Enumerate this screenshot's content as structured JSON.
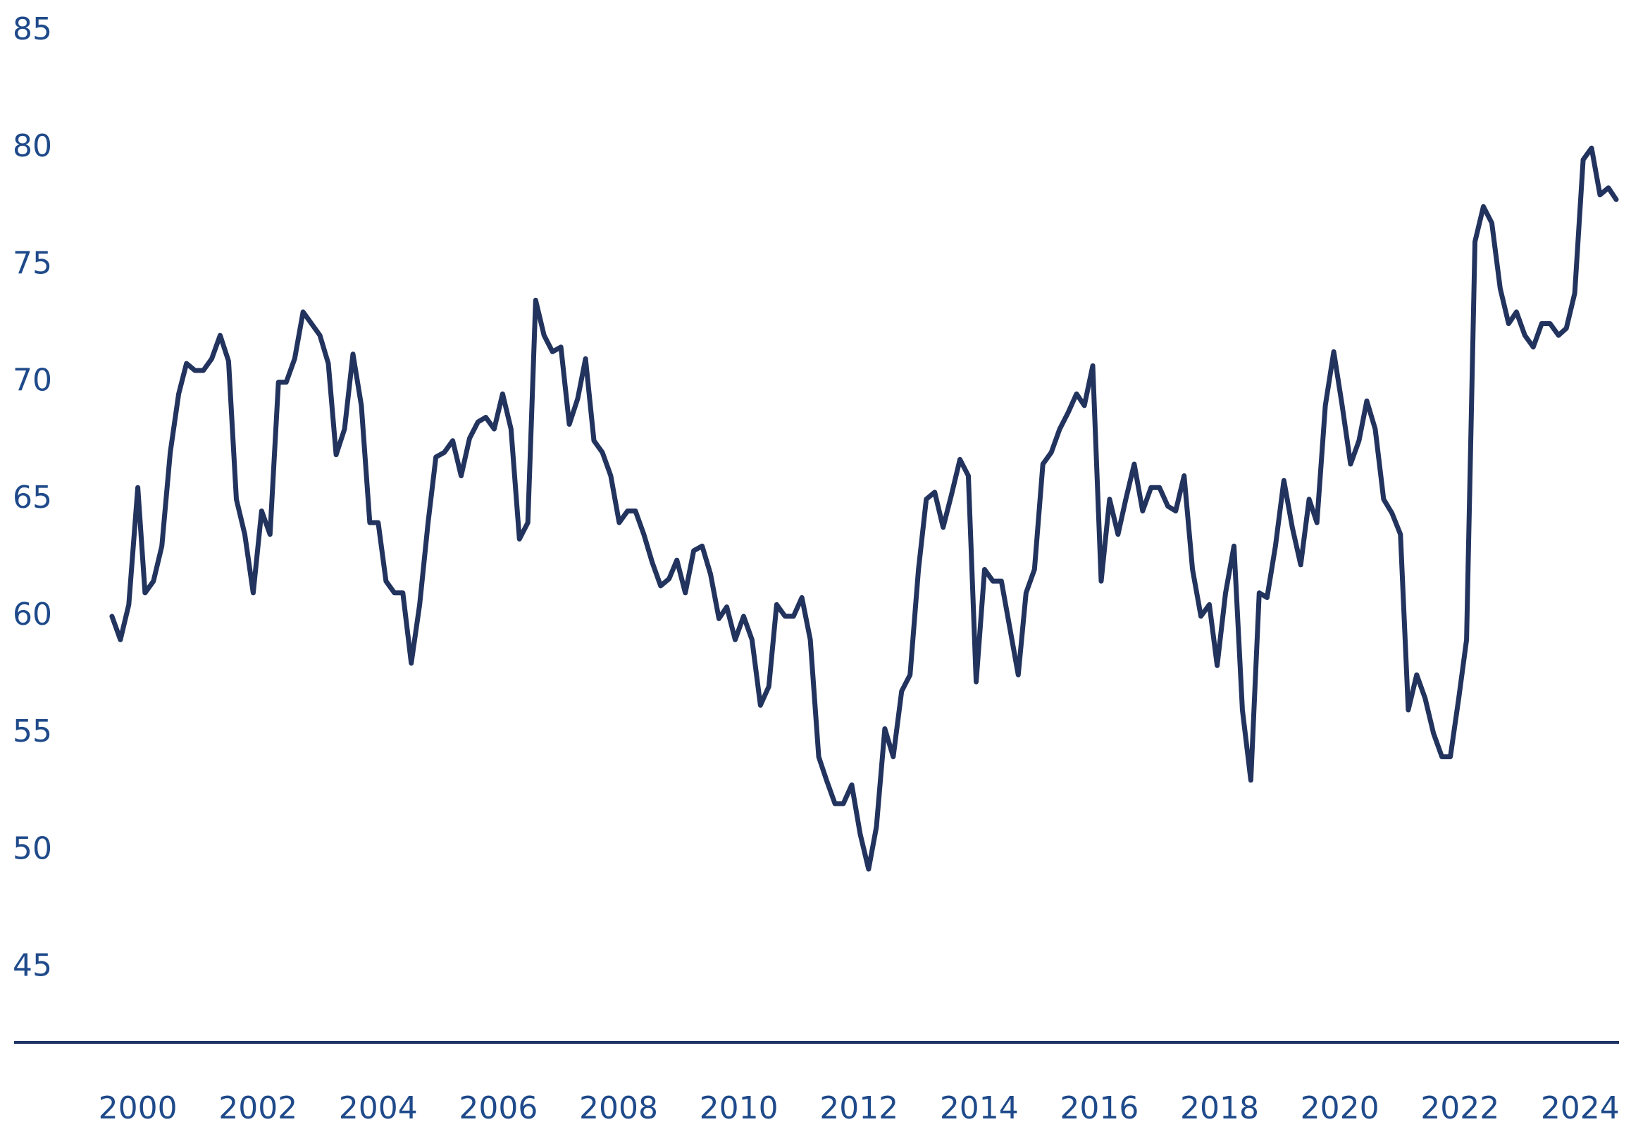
{
  "chart_data": {
    "type": "line",
    "x": [
      1999.57,
      1999.71,
      1999.85,
      2000.0,
      2000.12,
      2000.26,
      2000.4,
      2000.54,
      2000.68,
      2000.81,
      2000.95,
      2001.09,
      2001.23,
      2001.37,
      2001.51,
      2001.64,
      2001.78,
      2001.92,
      2002.06,
      2002.2,
      2002.34,
      2002.47,
      2002.61,
      2002.75,
      2002.89,
      2003.03,
      2003.17,
      2003.3,
      2003.44,
      2003.58,
      2003.72,
      2003.86,
      2004.0,
      2004.13,
      2004.27,
      2004.41,
      2004.55,
      2004.69,
      2004.83,
      2004.96,
      2005.1,
      2005.24,
      2005.38,
      2005.52,
      2005.66,
      2005.79,
      2005.93,
      2006.07,
      2006.21,
      2006.35,
      2006.49,
      2006.62,
      2006.76,
      2006.9,
      2007.04,
      2007.18,
      2007.32,
      2007.45,
      2007.59,
      2007.73,
      2007.87,
      2008.01,
      2008.15,
      2008.28,
      2008.42,
      2008.56,
      2008.7,
      2008.84,
      2008.97,
      2009.11,
      2009.25,
      2009.39,
      2009.53,
      2009.67,
      2009.8,
      2009.94,
      2010.08,
      2010.22,
      2010.36,
      2010.5,
      2010.63,
      2010.77,
      2010.91,
      2011.05,
      2011.19,
      2011.33,
      2011.46,
      2011.6,
      2011.74,
      2011.88,
      2012.02,
      2012.16,
      2012.29,
      2012.43,
      2012.57,
      2012.71,
      2012.85,
      2012.99,
      2013.12,
      2013.26,
      2013.4,
      2013.54,
      2013.68,
      2013.82,
      2013.95,
      2014.09,
      2014.23,
      2014.37,
      2014.51,
      2014.65,
      2014.78,
      2014.92,
      2015.06,
      2015.2,
      2015.34,
      2015.48,
      2015.62,
      2015.75,
      2015.89,
      2016.03,
      2016.17,
      2016.31,
      2016.44,
      2016.58,
      2016.72,
      2016.86,
      2017.0,
      2017.14,
      2017.27,
      2017.41,
      2017.55,
      2017.69,
      2017.83,
      2017.96,
      2018.1,
      2018.24,
      2018.38,
      2018.52,
      2018.66,
      2018.79,
      2018.93,
      2019.07,
      2019.21,
      2019.35,
      2019.49,
      2019.62,
      2019.76,
      2019.9,
      2020.04,
      2020.18,
      2020.32,
      2020.45,
      2020.59,
      2020.73,
      2020.87,
      2021.01,
      2021.14,
      2021.28,
      2021.42,
      2021.56,
      2021.7,
      2021.84,
      2021.98,
      2022.11,
      2022.25,
      2022.39,
      2022.53,
      2022.67,
      2022.81,
      2022.94,
      2023.08,
      2023.22,
      2023.36,
      2023.5,
      2023.64,
      2023.77,
      2023.91,
      2024.05,
      2024.19,
      2024.33,
      2024.47,
      2024.6
    ],
    "series": [
      {
        "color": "#22335e",
        "values": [
          60,
          59,
          60.5,
          65.5,
          61,
          61.5,
          63,
          67,
          69.5,
          70.8,
          70.5,
          70.5,
          71,
          72,
          70.9,
          65,
          63.5,
          61,
          64.5,
          63.5,
          70,
          70,
          71,
          73,
          72.5,
          72,
          70.8,
          66.9,
          68,
          71.2,
          69,
          64,
          64,
          61.5,
          61,
          61,
          58,
          60.5,
          64,
          66.8,
          67,
          67.5,
          66,
          67.6,
          68.3,
          68.5,
          68,
          69.5,
          68,
          63.3,
          64,
          73.5,
          72,
          71.3,
          71.5,
          68.2,
          69.3,
          71,
          67.5,
          67,
          66,
          64,
          64.5,
          64.5,
          63.5,
          62.3,
          61.3,
          61.6,
          62.4,
          61,
          62.8,
          63,
          61.8,
          59.9,
          60.4,
          59,
          60,
          59,
          56.2,
          57,
          60.5,
          60,
          60,
          60.8,
          59,
          54,
          53,
          52,
          52,
          52.8,
          50.7,
          49.2,
          51,
          55.2,
          54,
          56.8,
          57.5,
          62,
          65,
          65.3,
          63.8,
          65.2,
          66.7,
          66,
          57.2,
          62,
          61.5,
          61.5,
          59.5,
          57.5,
          61,
          62,
          66.5,
          67,
          68,
          68.7,
          69.5,
          69,
          70.7,
          61.5,
          65,
          63.5,
          65,
          66.5,
          64.5,
          65.5,
          65.5,
          64.7,
          64.5,
          66,
          62,
          60,
          60.5,
          57.9,
          61,
          63,
          56,
          53,
          61,
          60.8,
          63,
          65.8,
          63.8,
          62.2,
          65,
          64,
          69,
          71.3,
          69,
          66.5,
          67.5,
          69.2,
          68,
          65,
          64.4,
          63.5,
          56,
          57.5,
          56.5,
          55,
          54,
          54,
          56.5,
          59,
          76,
          77.5,
          76.8,
          74,
          72.5,
          73,
          72,
          71.5,
          72.5,
          72.5,
          72,
          72.3,
          73.8,
          79.5,
          80,
          78,
          78.3,
          77.8
        ]
      }
    ],
    "xlim": [
      1998,
      2024.6
    ],
    "xticks": [
      2000,
      2002,
      2004,
      2006,
      2008,
      2010,
      2012,
      2014,
      2016,
      2018,
      2020,
      2022,
      2024
    ],
    "ylim": [
      41.8,
      85
    ],
    "yticks": [
      45,
      50,
      55,
      60,
      65,
      70,
      75,
      80,
      85
    ],
    "grid": false
  }
}
